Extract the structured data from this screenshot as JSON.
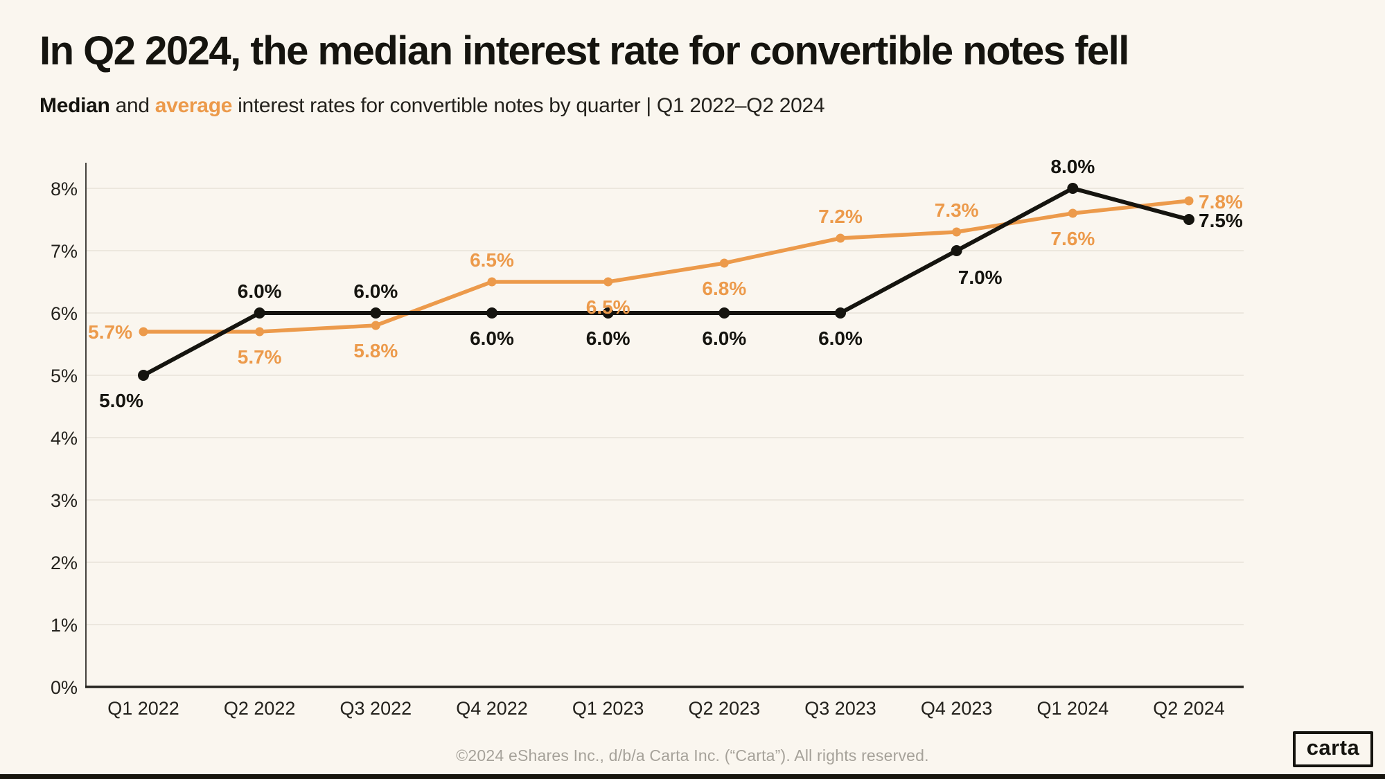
{
  "title": "In Q2 2024, the median interest rate for convertible notes fell",
  "subtitle": {
    "median_word": "Median",
    "mid_text": " and ",
    "average_word": "average",
    "rest_text": " interest rates for convertible notes by quarter | Q1 2022–Q2 2024"
  },
  "footer": {
    "copyright": "©2024 eShares Inc., d/b/a Carta Inc. (“Carta”). All rights reserved.",
    "logo_text": "carta"
  },
  "colors": {
    "background": "#FAF6EF",
    "median_black": "#15140f",
    "average_orange": "#EC9A4B",
    "gridline": "#e7e2d9",
    "y_axis_line": "#45423d",
    "x_axis_line": "#25231f",
    "footer_gray": "#a6a29a"
  },
  "chart_data": {
    "type": "line",
    "title": "Median and average interest rates for convertible notes by quarter",
    "categories": [
      "Q1 2022",
      "Q2 2022",
      "Q3 2022",
      "Q4 2022",
      "Q1 2023",
      "Q2 2023",
      "Q3 2023",
      "Q4 2023",
      "Q1 2024",
      "Q2 2024"
    ],
    "series": [
      {
        "name": "Median",
        "color": "#15140f",
        "values": [
          5.0,
          6.0,
          6.0,
          6.0,
          6.0,
          6.0,
          6.0,
          7.0,
          8.0,
          7.5
        ],
        "labels": [
          "5.0%",
          "6.0%",
          "6.0%",
          "6.0%",
          "6.0%",
          "6.0%",
          "6.0%",
          "7.0%",
          "8.0%",
          "7.5%"
        ],
        "label_positions": [
          "below-left",
          "above",
          "above",
          "below",
          "below",
          "below",
          "below",
          "below-right",
          "above",
          "right"
        ]
      },
      {
        "name": "Average",
        "color": "#EC9A4B",
        "values": [
          5.7,
          5.7,
          5.8,
          6.5,
          6.5,
          6.8,
          7.2,
          7.3,
          7.6,
          7.8
        ],
        "labels": [
          "5.7%",
          "5.7%",
          "5.8%",
          "6.5%",
          "6.5%",
          "6.8%",
          "7.2%",
          "7.3%",
          "7.6%",
          "7.8%"
        ],
        "label_positions": [
          "left",
          "below",
          "below",
          "above",
          "below",
          "below",
          "above",
          "above",
          "below",
          "right"
        ]
      }
    ],
    "yticks": [
      0,
      1,
      2,
      3,
      4,
      5,
      6,
      7,
      8
    ],
    "ytick_labels": [
      "0%",
      "1%",
      "2%",
      "3%",
      "4%",
      "5%",
      "6%",
      "7%",
      "8%"
    ],
    "ylim": [
      0,
      8.4
    ],
    "grid": true,
    "legend": "inline-in-subtitle"
  }
}
